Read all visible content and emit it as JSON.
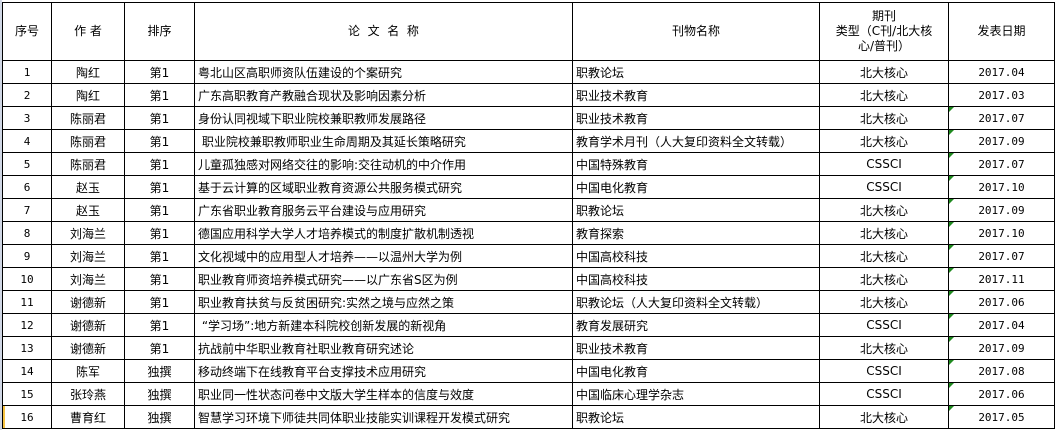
{
  "headers": {
    "index": "序号",
    "author": "作 者",
    "rank": "排序",
    "title": "论  文  名  称",
    "journal": "刊物名称",
    "type_line1": "期刊",
    "type_line2": "类型（C刊/北大核心/普刊）",
    "date": "发表日期"
  },
  "rows": [
    {
      "no": "1",
      "author": "陶红",
      "rank": "第1",
      "title": "粤北山区高职师资队伍建设的个案研究",
      "journal": "职教论坛",
      "type": "北大核心",
      "date": "2017.04",
      "flag": false
    },
    {
      "no": "2",
      "author": "陶红",
      "rank": "第1",
      "title": "广东高职教育产教融合现状及影响因素分析",
      "journal": "职业技术教育",
      "type": "北大核心",
      "date": "2017.03",
      "flag": false
    },
    {
      "no": "3",
      "author": "陈丽君",
      "rank": "第1",
      "title": "身份认同视域下职业院校兼职教师发展路径",
      "journal": "职业技术教育",
      "type": "北大核心",
      "date": "2017.07",
      "flag": true
    },
    {
      "no": "4",
      "author": "陈丽君",
      "rank": "第1",
      "title": " 职业院校兼职教师职业生命周期及其延长策略研究",
      "journal": "教育学术月刊（人大复印资料全文转载）",
      "type": "北大核心",
      "date": "2017.09",
      "flag": true
    },
    {
      "no": "5",
      "author": "陈丽君",
      "rank": "第1",
      "title": "儿童孤独感对网络交往的影响:交往动机的中介作用",
      "journal": "中国特殊教育",
      "type": "CSSCI",
      "date": "2017.07",
      "flag": true
    },
    {
      "no": "6",
      "author": "赵玉",
      "rank": "第1",
      "title": "基于云计算的区域职业教育资源公共服务模式研究",
      "journal": "中国电化教育",
      "type": "CSSCI",
      "date": "2017.10",
      "flag": true
    },
    {
      "no": "7",
      "author": "赵玉",
      "rank": "第1",
      "title": "广东省职业教育服务云平台建设与应用研究",
      "journal": "职教论坛",
      "type": "北大核心",
      "date": "2017.09",
      "flag": true
    },
    {
      "no": "8",
      "author": "刘海兰",
      "rank": "第1",
      "title": "德国应用科学大学人才培养模式的制度扩散机制透视",
      "journal": "教育探索",
      "type": "北大核心",
      "date": "2017.10",
      "flag": true
    },
    {
      "no": "9",
      "author": "刘海兰",
      "rank": "第1",
      "title": "文化视域中的应用型人才培养——以温州大学为例",
      "journal": "中国高校科技",
      "type": "北大核心",
      "date": "2017.07",
      "flag": true
    },
    {
      "no": "10",
      "author": "刘海兰",
      "rank": "第1",
      "title": "职业教育师资培养模式研究——以广东省S区为例",
      "journal": "中国高校科技",
      "type": "北大核心",
      "date": "2017.11",
      "flag": true
    },
    {
      "no": "11",
      "author": "谢德新",
      "rank": "第1",
      "title": "职业教育扶贫与反贫困研究:实然之境与应然之策",
      "journal": "职教论坛（人大复印资料全文转载）",
      "type": "北大核心",
      "date": "2017.06",
      "flag": true
    },
    {
      "no": "12",
      "author": "谢德新",
      "rank": "第1",
      "title": " “学习场”:地方新建本科院校创新发展的新视角",
      "journal": "教育发展研究",
      "type": "CSSCI",
      "date": "2017.04",
      "flag": true
    },
    {
      "no": "13",
      "author": "谢德新",
      "rank": "第1",
      "title": "抗战前中华职业教育社职业教育研究述论",
      "journal": "职业技术教育",
      "type": "北大核心",
      "date": "2017.09",
      "flag": true
    },
    {
      "no": "14",
      "author": "陈军",
      "rank": "独撰",
      "title": "移动终端下在线教育平台支撑技术应用研究",
      "journal": "中国电化教育",
      "type": "CSSCI",
      "date": "2017.08",
      "flag": true
    },
    {
      "no": "15",
      "author": "张玲燕",
      "rank": "独撰",
      "title": "职业同一性状态问卷中文版大学生样本的信度与效度",
      "journal": "中国临床心理学杂志",
      "type": "CSSCI",
      "date": "2017.06",
      "flag": true
    },
    {
      "no": "16",
      "author": "曹育红",
      "rank": "独撰",
      "title": "智慧学习环境下师徒共同体职业技能实训课程开发模式研究",
      "journal": "职教论坛",
      "type": "北大核心",
      "date": "2017.05",
      "flag": true
    }
  ],
  "colors": {
    "grid": "#000000",
    "flag_triangle": "#1f8a1f",
    "selection": "#f5c242"
  }
}
